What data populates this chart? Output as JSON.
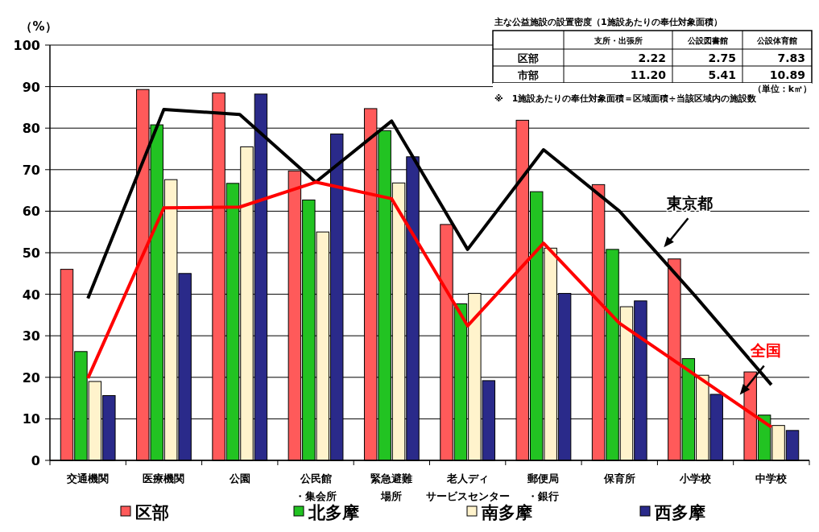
{
  "chart_data": {
    "type": "bar",
    "categories": [
      "交通機関",
      "医療機関",
      "公園",
      "公民館・集会所",
      "緊急避難場所",
      "老人ディサービスセンター",
      "郵便局・銀行",
      "保育所",
      "小学校",
      "中学校"
    ],
    "series": [
      {
        "name": "区部",
        "color": "#ff5a5a",
        "values": [
          46,
          89.3,
          88.5,
          69.7,
          84.7,
          56.8,
          81.9,
          66.4,
          48.5,
          21.3
        ]
      },
      {
        "name": "北多摩",
        "color": "#22c322",
        "values": [
          26.2,
          80.8,
          66.7,
          62.7,
          79.4,
          37.7,
          64.7,
          50.8,
          24.5,
          10.9
        ]
      },
      {
        "name": "南多摩",
        "color": "#fff3cc",
        "values": [
          19,
          67.6,
          75.5,
          55,
          66.8,
          40.2,
          51.1,
          37,
          20.5,
          8.4
        ]
      },
      {
        "name": "西多摩",
        "color": "#2a2a8a",
        "values": [
          15.6,
          45,
          88.2,
          78.6,
          73.1,
          19.2,
          40.2,
          38.4,
          15.9,
          7.2
        ]
      },
      {
        "name": "東京都",
        "type": "line",
        "color": "#000000",
        "values": [
          39,
          84.5,
          83.3,
          67,
          81.7,
          50.8,
          74.8,
          60,
          39.5,
          18.2
        ]
      },
      {
        "name": "全国",
        "type": "line",
        "color": "#ff0000",
        "values": [
          19.8,
          60.8,
          61,
          67,
          63,
          32.4,
          52.3,
          33,
          20.5,
          8
        ]
      }
    ],
    "ylabel": "（%）",
    "ylim": [
      0,
      100
    ],
    "yticks": [
      0,
      10,
      20,
      30,
      40,
      50,
      60,
      70,
      80,
      90,
      100
    ],
    "grid": "y",
    "legend": "bottom",
    "annotations": [
      "主な公益施設の設置密度（1施設あたりの奉仕対象面積）",
      "支所・出張所",
      "公設図書館",
      "公設体育館",
      "区部",
      "2.22",
      "2.75",
      "7.83",
      "市部",
      "11.20",
      "5.41",
      "10.89",
      "（単位：k㎡）",
      "※　1施設あたりの奉仕対象面積＝区域面積÷当該区域内の施設数"
    ]
  }
}
